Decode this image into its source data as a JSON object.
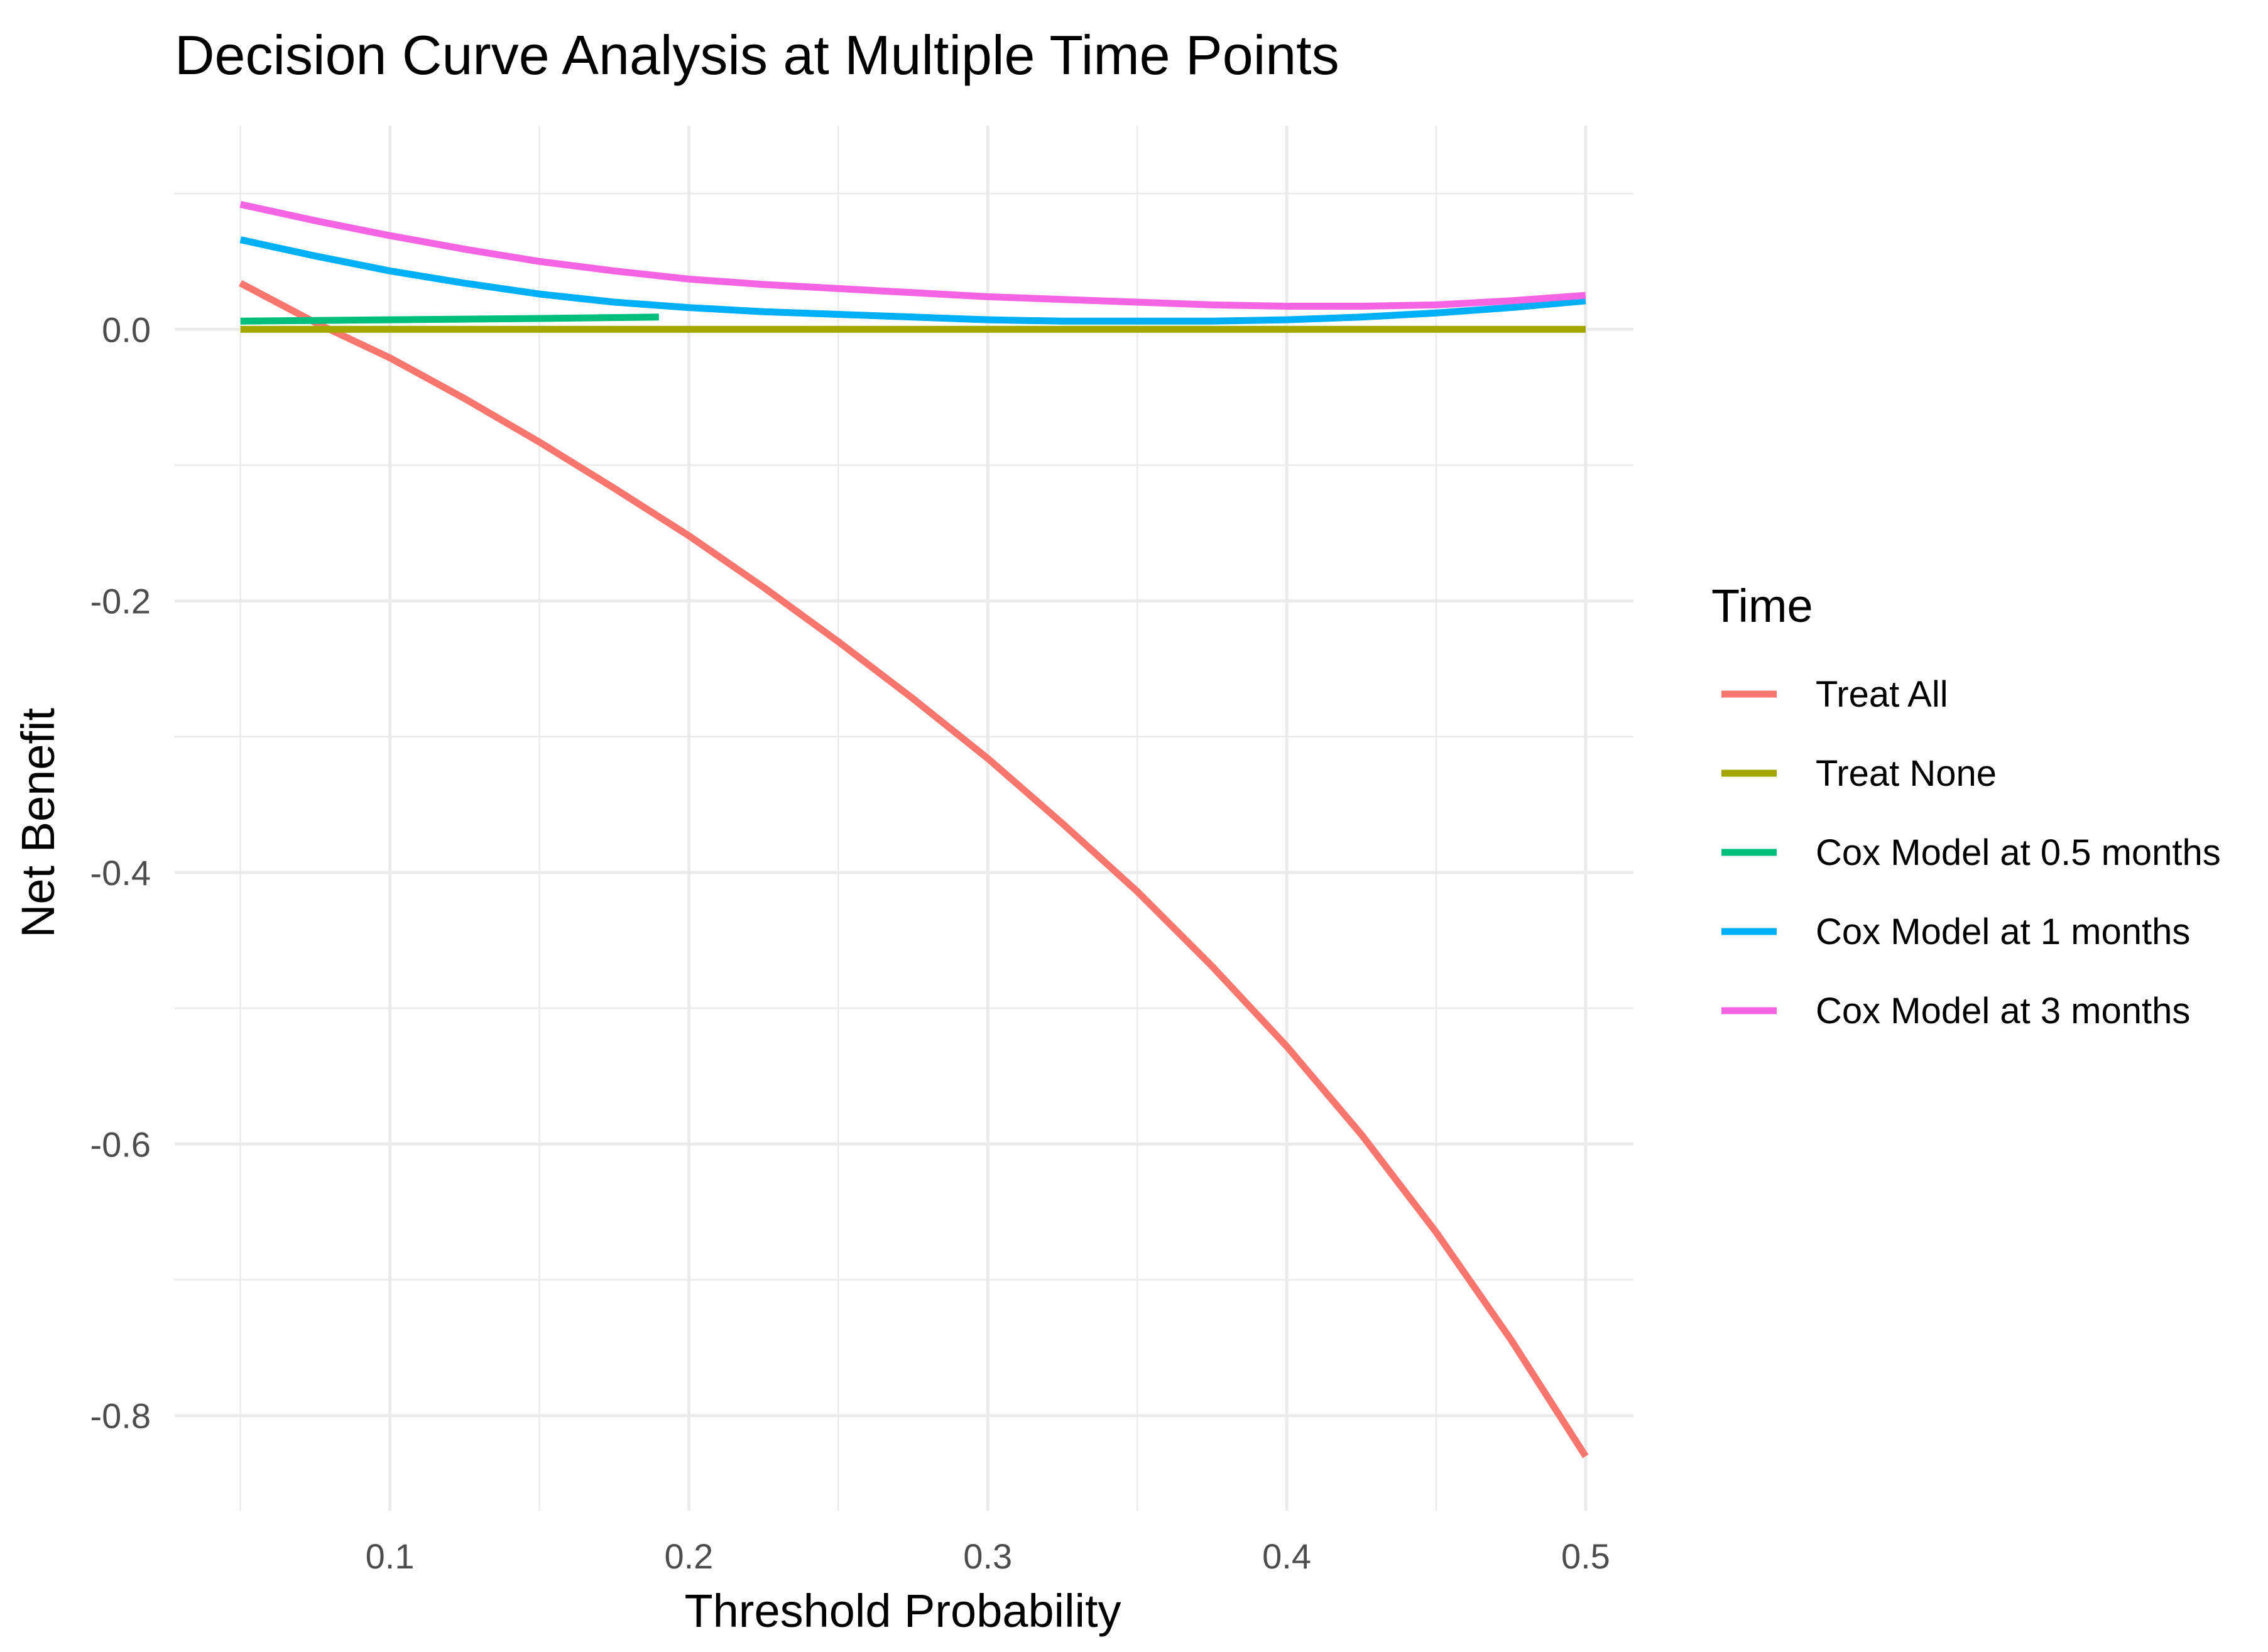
{
  "chart_data": {
    "type": "line",
    "title": "Decision Curve Analysis at Multiple Time Points",
    "xlabel": "Threshold Probability",
    "ylabel": "Net Benefit",
    "xlim": [
      0.028,
      0.516
    ],
    "ylim": [
      -0.87,
      0.15
    ],
    "x_ticks": [
      0.1,
      0.2,
      0.3,
      0.4,
      0.5
    ],
    "x_tick_labels": [
      "0.1",
      "0.2",
      "0.3",
      "0.4",
      "0.5"
    ],
    "x_minor": [
      0.05,
      0.15,
      0.25,
      0.35,
      0.45
    ],
    "y_ticks": [
      0.0,
      -0.2,
      -0.4,
      -0.6,
      -0.8
    ],
    "y_tick_labels": [
      "0.0",
      "-0.2",
      "-0.4",
      "-0.6",
      "-0.8"
    ],
    "y_minor": [
      0.1,
      -0.1,
      -0.3,
      -0.5,
      -0.7
    ],
    "grid": true,
    "legend": {
      "title": "Time",
      "position": "right"
    },
    "series": [
      {
        "name": "Treat All",
        "color": "#F8766D",
        "x": [
          0.05,
          0.075,
          0.1,
          0.125,
          0.15,
          0.175,
          0.2,
          0.225,
          0.25,
          0.275,
          0.3,
          0.325,
          0.35,
          0.375,
          0.4,
          0.425,
          0.45,
          0.475,
          0.5
        ],
        "y": [
          0.034,
          0.005,
          -0.021,
          -0.051,
          -0.083,
          -0.117,
          -0.152,
          -0.19,
          -0.23,
          -0.272,
          -0.316,
          -0.364,
          -0.414,
          -0.469,
          -0.528,
          -0.593,
          -0.665,
          -0.744,
          -0.83
        ]
      },
      {
        "name": "Treat None",
        "color": "#A3A500",
        "x": [
          0.05,
          0.5
        ],
        "y": [
          0.0,
          0.0
        ]
      },
      {
        "name": "Cox Model at 0.5 months",
        "color": "#00BF7D",
        "x": [
          0.05,
          0.1,
          0.15,
          0.19
        ],
        "y": [
          0.006,
          0.007,
          0.008,
          0.009
        ]
      },
      {
        "name": "Cox Model at 1 months",
        "color": "#00B0F6",
        "x": [
          0.05,
          0.075,
          0.1,
          0.125,
          0.15,
          0.175,
          0.2,
          0.225,
          0.25,
          0.275,
          0.3,
          0.325,
          0.35,
          0.375,
          0.4,
          0.425,
          0.45,
          0.475,
          0.5
        ],
        "y": [
          0.066,
          0.054,
          0.043,
          0.034,
          0.026,
          0.02,
          0.016,
          0.013,
          0.011,
          0.009,
          0.007,
          0.006,
          0.006,
          0.006,
          0.007,
          0.009,
          0.012,
          0.016,
          0.021
        ]
      },
      {
        "name": "Cox Model at 3 months",
        "color": "#F564E3",
        "x": [
          0.05,
          0.075,
          0.1,
          0.125,
          0.15,
          0.175,
          0.2,
          0.225,
          0.25,
          0.275,
          0.3,
          0.325,
          0.35,
          0.375,
          0.4,
          0.425,
          0.45,
          0.475,
          0.5
        ],
        "y": [
          0.092,
          0.08,
          0.069,
          0.059,
          0.05,
          0.043,
          0.037,
          0.033,
          0.03,
          0.027,
          0.024,
          0.022,
          0.02,
          0.018,
          0.017,
          0.017,
          0.018,
          0.021,
          0.025
        ]
      }
    ]
  }
}
